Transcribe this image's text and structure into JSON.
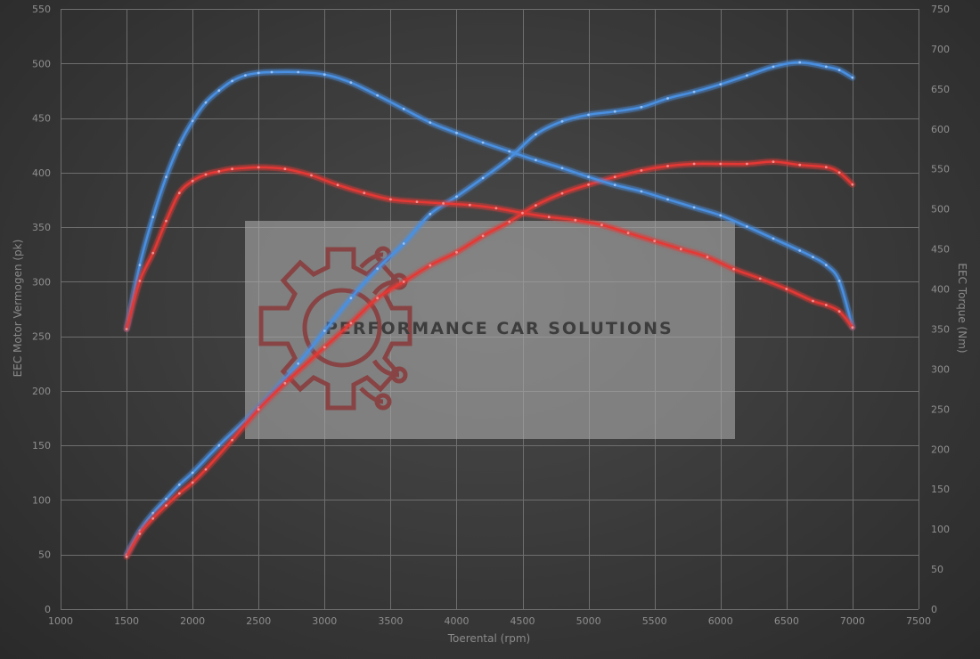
{
  "chart_data": {
    "type": "line",
    "xlabel": "Toerental (rpm)",
    "ylabel_left": "EEC Motor Vermogen (pk)",
    "ylabel_right": "EEC Torque (Nm)",
    "xlim": [
      1000,
      7500
    ],
    "ylim_left": [
      0,
      550
    ],
    "ylim_right": [
      0,
      750
    ],
    "x_ticks": [
      1000,
      1500,
      2000,
      2500,
      3000,
      3500,
      4000,
      4500,
      5000,
      5500,
      6000,
      6500,
      7000,
      7500
    ],
    "y_ticks_left": [
      0,
      50,
      100,
      150,
      200,
      250,
      300,
      350,
      400,
      450,
      500,
      550
    ],
    "y_ticks_right": [
      0,
      50,
      100,
      150,
      200,
      250,
      300,
      350,
      400,
      450,
      500,
      550,
      600,
      650,
      700,
      750
    ],
    "grid": true,
    "series": [
      {
        "color": "#4a90e2",
        "axis": "left",
        "x": [
          1500,
          1600,
          1700,
          1800,
          1900,
          2000,
          2200,
          2500,
          2800,
          3000,
          3200,
          3400,
          3600,
          3800,
          4000,
          4200,
          4400,
          4600,
          4800,
          5000,
          5200,
          5400,
          5600,
          5800,
          6000,
          6200,
          6400,
          6600,
          6800,
          6900,
          7000
        ],
        "values": [
          50,
          72,
          88,
          101,
          114,
          125,
          150,
          185,
          225,
          255,
          285,
          312,
          335,
          362,
          378,
          395,
          413,
          435,
          447,
          453,
          456,
          460,
          468,
          474,
          481,
          489,
          497,
          501,
          497,
          494,
          487
        ]
      },
      {
        "color": "#e53935",
        "axis": "left",
        "x": [
          1500,
          1600,
          1700,
          1800,
          1900,
          2000,
          2100,
          2300,
          2500,
          2700,
          3000,
          3200,
          3400,
          3600,
          3800,
          4000,
          4200,
          4400,
          4600,
          4800,
          5000,
          5200,
          5400,
          5600,
          5800,
          6000,
          6200,
          6400,
          6600,
          6800,
          6900,
          7000
        ],
        "values": [
          48,
          69,
          83,
          95,
          106,
          116,
          128,
          155,
          183,
          207,
          240,
          262,
          285,
          300,
          315,
          327,
          342,
          355,
          370,
          381,
          389,
          396,
          402,
          406,
          408,
          408,
          408,
          410,
          407,
          405,
          400,
          389
        ]
      },
      {
        "color": "#4a90e2",
        "axis": "right",
        "x": [
          1500,
          1600,
          1700,
          1800,
          1900,
          2000,
          2100,
          2200,
          2300,
          2400,
          2500,
          2600,
          2800,
          3000,
          3200,
          3400,
          3600,
          3800,
          4000,
          4200,
          4400,
          4600,
          4800,
          5000,
          5200,
          5400,
          5600,
          5800,
          6000,
          6200,
          6400,
          6600,
          6700,
          6800,
          6900,
          7000
        ],
        "values": [
          350,
          430,
          490,
          540,
          580,
          610,
          633,
          648,
          660,
          667,
          670,
          671,
          671,
          668,
          658,
          642,
          625,
          608,
          595,
          583,
          572,
          561,
          551,
          540,
          530,
          522,
          512,
          502,
          492,
          478,
          463,
          448,
          440,
          430,
          410,
          352
        ]
      },
      {
        "color": "#e53935",
        "axis": "right",
        "x": [
          1500,
          1600,
          1700,
          1800,
          1900,
          2000,
          2100,
          2200,
          2300,
          2500,
          2700,
          2900,
          3100,
          3300,
          3500,
          3700,
          3900,
          4100,
          4300,
          4500,
          4700,
          4900,
          5100,
          5300,
          5500,
          5700,
          5900,
          6100,
          6300,
          6500,
          6700,
          6800,
          6900,
          7000
        ],
        "values": [
          350,
          410,
          445,
          485,
          520,
          535,
          543,
          547,
          550,
          552,
          550,
          542,
          530,
          520,
          512,
          509,
          507,
          505,
          501,
          495,
          490,
          486,
          480,
          470,
          460,
          450,
          440,
          425,
          413,
          400,
          385,
          380,
          372,
          352
        ]
      }
    ]
  },
  "watermark": {
    "text": "PERFORMANCE CAR SOLUTIONS",
    "logo_icon": "gear-circuit-icon"
  }
}
